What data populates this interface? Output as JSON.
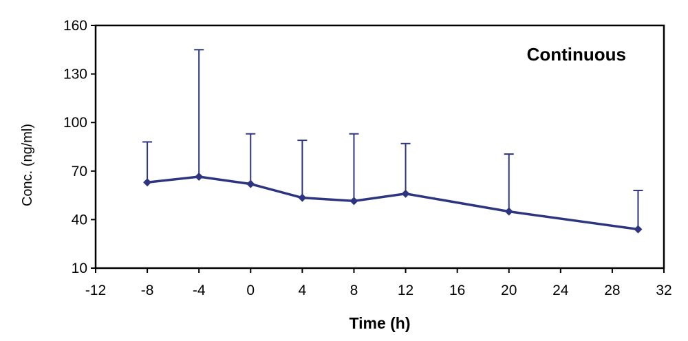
{
  "chart_data": {
    "type": "line",
    "title": "",
    "annotation": "Continuous",
    "xlabel": "Time (h)",
    "ylabel": "Conc. (ng/ml)",
    "xlim": [
      -12,
      32
    ],
    "ylim": [
      10,
      160
    ],
    "xticks": [
      "-12",
      "-8",
      "-4",
      "0",
      "4",
      "8",
      "12",
      "16",
      "20",
      "24",
      "28",
      "32"
    ],
    "yticks": [
      "10",
      "40",
      "70",
      "100",
      "130",
      "160"
    ],
    "grid": false,
    "legend": "none",
    "colors": {
      "series": "#2e3580",
      "axis": "#000000"
    },
    "series": [
      {
        "x": [
          -8,
          -4,
          0,
          4,
          8,
          12,
          20,
          30
        ],
        "values": [
          63,
          66.5,
          62,
          53.5,
          51.5,
          56,
          45,
          34
        ],
        "error_upper": [
          88,
          145,
          93,
          89,
          93,
          87,
          80.5,
          58
        ]
      }
    ]
  }
}
